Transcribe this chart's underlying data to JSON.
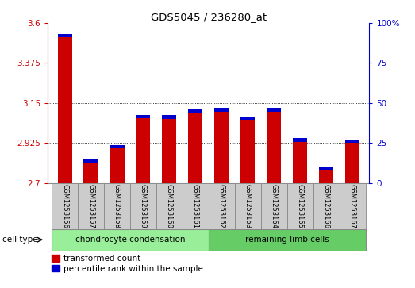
{
  "title": "GDS5045 / 236280_at",
  "categories": [
    "GSM1253156",
    "GSM1253157",
    "GSM1253158",
    "GSM1253159",
    "GSM1253160",
    "GSM1253161",
    "GSM1253162",
    "GSM1253163",
    "GSM1253164",
    "GSM1253165",
    "GSM1253166",
    "GSM1253167"
  ],
  "red_values": [
    3.52,
    2.815,
    2.895,
    3.065,
    3.06,
    3.09,
    3.1,
    3.055,
    3.1,
    2.93,
    2.775,
    2.925
  ],
  "blue_values": [
    0.018,
    0.018,
    0.018,
    0.018,
    0.022,
    0.022,
    0.022,
    0.018,
    0.022,
    0.022,
    0.015,
    0.015
  ],
  "y_min": 2.7,
  "y_max": 3.6,
  "y_ticks_left": [
    2.7,
    2.925,
    3.15,
    3.375,
    3.6
  ],
  "y_ticks_right": [
    0,
    25,
    50,
    75,
    100
  ],
  "left_tick_color": "#cc0000",
  "right_tick_color": "#0000cc",
  "bg_color": "#ffffff",
  "cell_bg_color": "#cccccc",
  "bar_width": 0.55,
  "cell_type_label": "cell type",
  "chondrocyte_label": "chondrocyte condensation",
  "remaining_label": "remaining limb cells",
  "chondrocyte_color": "#99ee99",
  "remaining_color": "#66cc66",
  "legend_red": "transformed count",
  "legend_blue": "percentile rank within the sample",
  "n_chondrocyte": 6,
  "n_remaining": 6
}
